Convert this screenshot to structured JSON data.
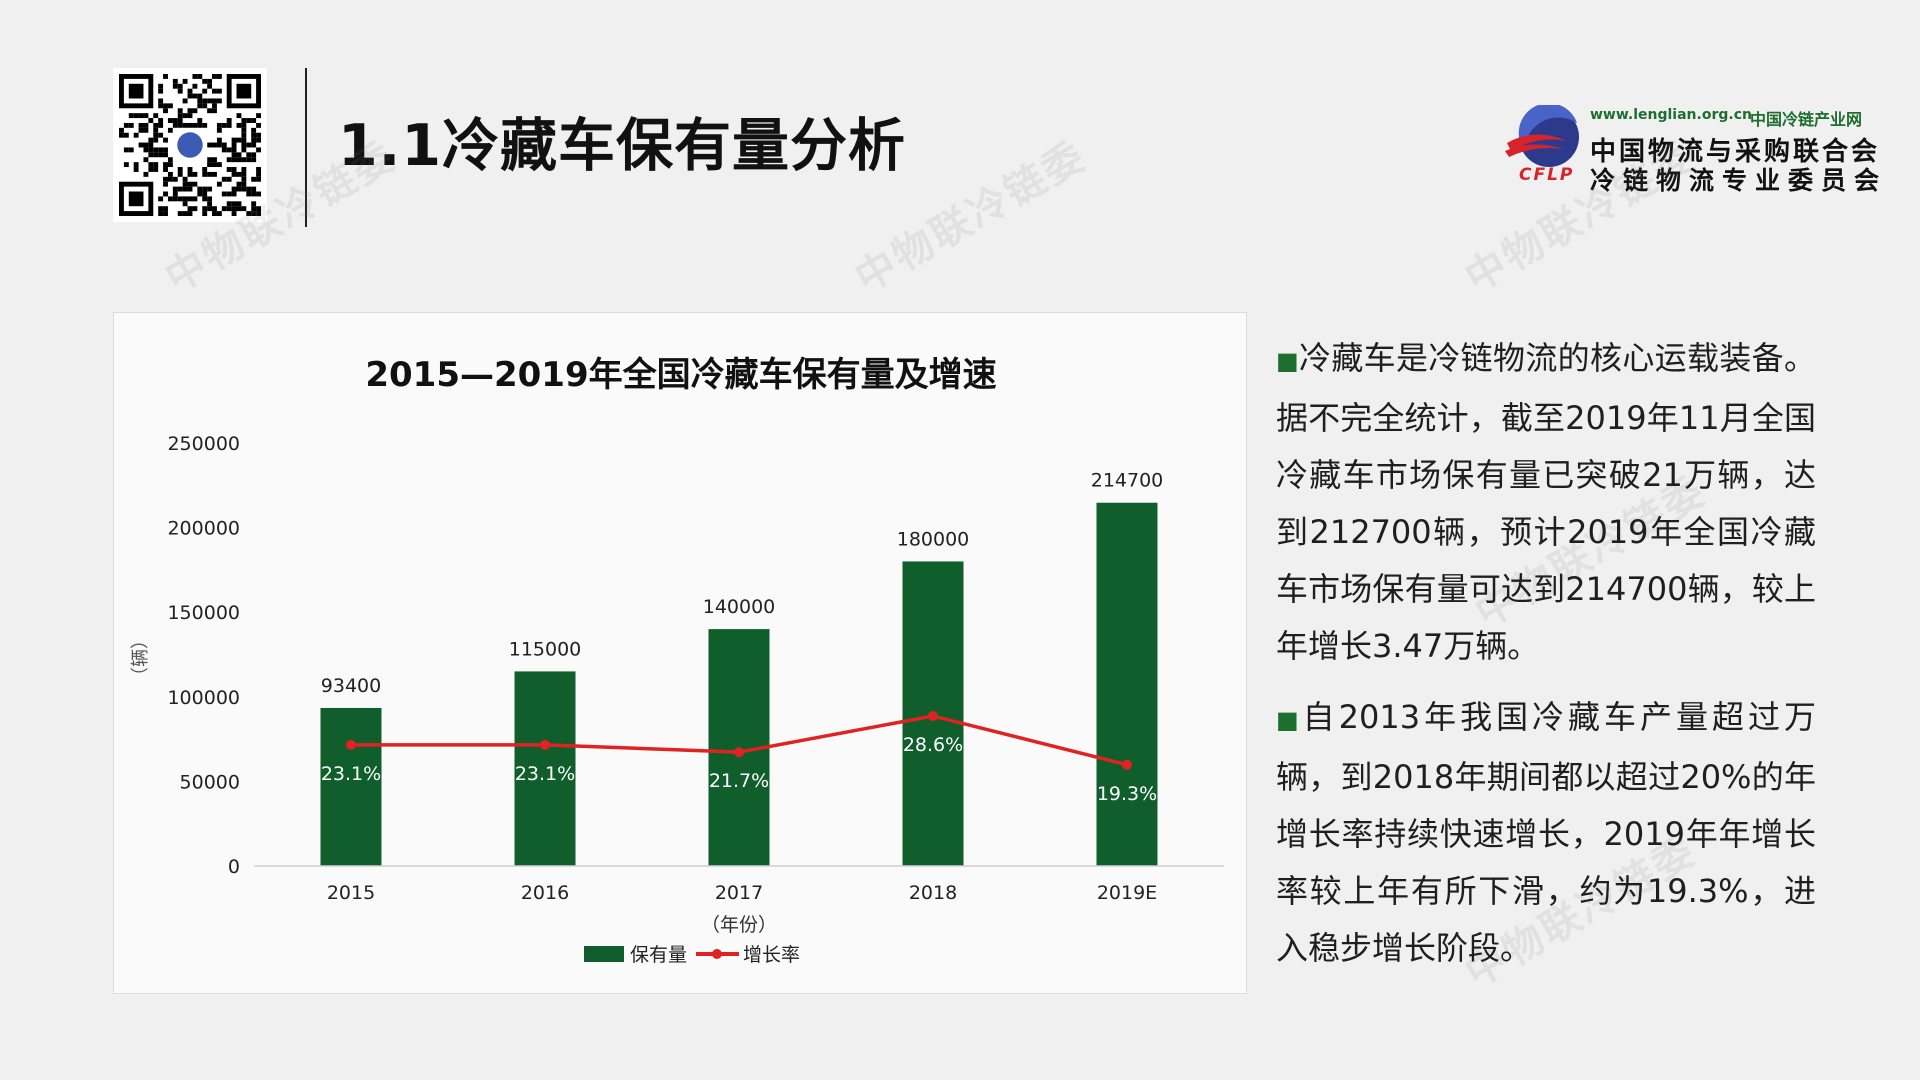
{
  "page": {
    "title": "1.1冷藏车保有量分析",
    "logo": {
      "url": "www.lenglian.org.cn",
      "site": "中国冷链产业网",
      "name_line1": "中国物流与采购联合会",
      "name_line2": "冷链物流专业委员会",
      "abbr": "CFLP"
    },
    "watermark_text": "中物联冷链委",
    "paragraphs": [
      "冷藏车是冷链物流的核心运载装备。据不完全统计，截至2019年11月全国冷藏车市场保有量已突破21万辆，达到212700辆，预计2019年全国冷藏车市场保有量可达到214700辆，较上年增长3.47万辆。",
      "自2013年我国冷藏车产量超过万辆，到2018年期间都以超过20%的年增长率持续快速增长，2019年年增长率较上年有所下滑，约为19.3%，进入稳步增长阶段。"
    ],
    "bullet_glyph": "■",
    "colors": {
      "bar": "#0f5e2c",
      "line": "#e02222",
      "brand_green": "#1d6e2f"
    }
  },
  "chart_data": {
    "type": "bar",
    "title": "2015—2019年全国冷藏车保有量及增速",
    "categories": [
      "2015",
      "2016",
      "2017",
      "2018",
      "2019E"
    ],
    "series": [
      {
        "name": "保有量",
        "type": "bar",
        "values": [
          93400,
          115000,
          140000,
          180000,
          214700
        ]
      },
      {
        "name": "增长率",
        "type": "line",
        "values": [
          23.1,
          23.1,
          21.7,
          28.6,
          19.3
        ],
        "labels": [
          "23.1%",
          "23.1%",
          "21.7%",
          "28.6%",
          "19.3%"
        ]
      }
    ],
    "ylabel": "（辆）",
    "xlabel": "（年份）",
    "ylim": [
      0,
      250000
    ],
    "yticks": [
      0,
      50000,
      100000,
      150000,
      200000,
      250000
    ],
    "legend_position": "bottom",
    "grid": false
  }
}
